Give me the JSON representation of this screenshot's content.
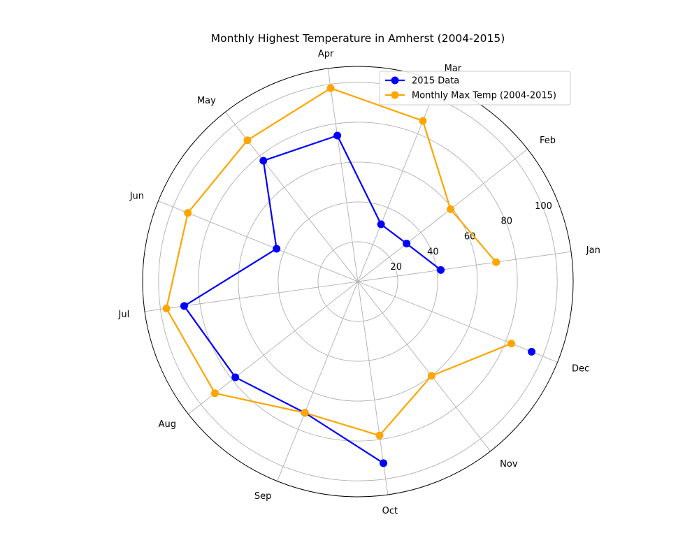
{
  "chart_data": {
    "type": "radar",
    "title": "Monthly Highest Temperature in Amherst (2004-2015)",
    "categories": [
      "Jan",
      "Feb",
      "Mar",
      "Apr",
      "May",
      "Jun",
      "Jul",
      "Aug",
      "Sep",
      "Oct",
      "Nov",
      "Dec"
    ],
    "rlim": [
      0,
      108
    ],
    "radial_ticks": [
      20,
      40,
      60,
      80,
      100
    ],
    "radial_tick_labels": [
      "20",
      "40",
      "60",
      "80",
      "100"
    ],
    "grid": true,
    "legend_placement": "top-right",
    "series": [
      {
        "name": "2015 Data",
        "color": "#0000ff",
        "values": [
          42,
          31,
          31,
          74,
          77,
          44,
          88,
          78,
          71,
          92,
          null,
          94
        ]
      },
      {
        "name": "Monthly Max Temp (2004-2015)",
        "color": "#ffa500",
        "values": [
          70,
          59,
          87,
          98,
          90,
          92,
          97,
          91,
          71,
          78,
          60,
          83
        ]
      }
    ]
  }
}
